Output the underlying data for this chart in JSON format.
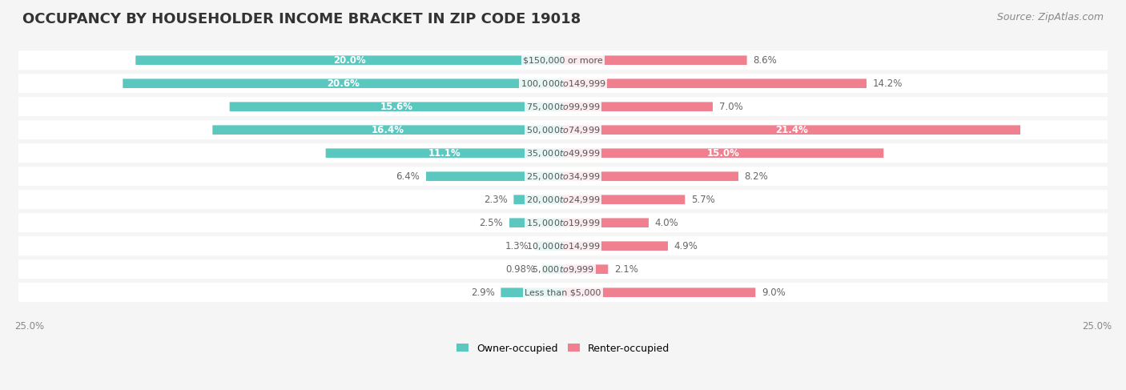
{
  "title": "OCCUPANCY BY HOUSEHOLDER INCOME BRACKET IN ZIP CODE 19018",
  "source": "Source: ZipAtlas.com",
  "categories": [
    "Less than $5,000",
    "$5,000 to $9,999",
    "$10,000 to $14,999",
    "$15,000 to $19,999",
    "$20,000 to $24,999",
    "$25,000 to $34,999",
    "$35,000 to $49,999",
    "$50,000 to $74,999",
    "$75,000 to $99,999",
    "$100,000 to $149,999",
    "$150,000 or more"
  ],
  "owner_values": [
    2.9,
    0.98,
    1.3,
    2.5,
    2.3,
    6.4,
    11.1,
    16.4,
    15.6,
    20.6,
    20.0
  ],
  "renter_values": [
    9.0,
    2.1,
    4.9,
    4.0,
    5.7,
    8.2,
    15.0,
    21.4,
    7.0,
    14.2,
    8.6
  ],
  "owner_color": "#5BC8C0",
  "renter_color": "#F08090",
  "owner_label": "Owner-occupied",
  "renter_label": "Renter-occupied",
  "background_color": "#f5f5f5",
  "bar_background": "#ffffff",
  "max_value": 25.0,
  "title_fontsize": 13,
  "source_fontsize": 9,
  "label_fontsize": 8.5
}
